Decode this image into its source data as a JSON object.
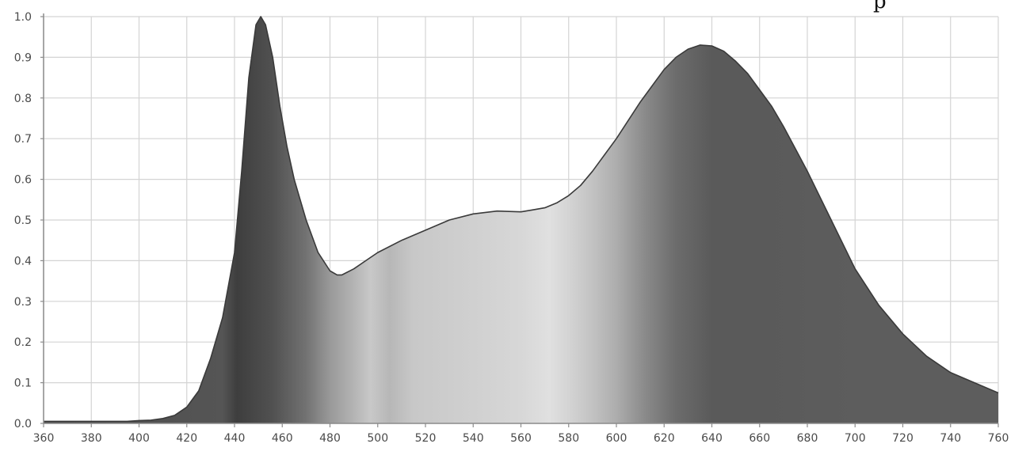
{
  "chart_data": {
    "type": "area",
    "title": "",
    "xlabel": "",
    "ylabel": "",
    "xlim": [
      360,
      760
    ],
    "ylim": [
      0.0,
      1.0
    ],
    "grid": true,
    "legend": "none",
    "x_ticks": [
      360,
      380,
      400,
      420,
      440,
      460,
      480,
      500,
      520,
      540,
      560,
      580,
      600,
      620,
      640,
      660,
      680,
      700,
      720,
      740,
      760
    ],
    "x_tick_labels": [
      "360",
      "380",
      "400",
      "420",
      "440",
      "460",
      "480",
      "500",
      "520",
      "540",
      "560",
      "580",
      "600",
      "620",
      "640",
      "660",
      "680",
      "700",
      "720",
      "740",
      "760"
    ],
    "y_ticks": [
      0.0,
      0.1,
      0.2,
      0.3,
      0.4,
      0.5,
      0.6,
      0.7,
      0.8,
      0.9,
      1.0
    ],
    "y_tick_labels": [
      "0.0",
      "0.1",
      "0.2",
      "0.3",
      "0.4",
      "0.5",
      "0.6",
      "0.7",
      "0.8",
      "0.9",
      "1.0"
    ],
    "series": [
      {
        "x": [
          360,
          380,
          395,
          400,
          405,
          410,
          415,
          420,
          425,
          430,
          435,
          440,
          443,
          446,
          449,
          451,
          453,
          456,
          459,
          462,
          465,
          470,
          475,
          480,
          483,
          485,
          490,
          495,
          500,
          510,
          520,
          530,
          540,
          550,
          560,
          565,
          570,
          575,
          580,
          585,
          590,
          595,
          600,
          605,
          610,
          615,
          620,
          625,
          630,
          635,
          640,
          645,
          650,
          655,
          660,
          665,
          670,
          675,
          680,
          690,
          700,
          710,
          720,
          730,
          740,
          750,
          760
        ],
        "values": [
          0.005,
          0.005,
          0.005,
          0.007,
          0.008,
          0.012,
          0.02,
          0.04,
          0.08,
          0.16,
          0.26,
          0.42,
          0.62,
          0.85,
          0.98,
          1.0,
          0.98,
          0.9,
          0.78,
          0.68,
          0.6,
          0.5,
          0.42,
          0.375,
          0.365,
          0.365,
          0.38,
          0.4,
          0.42,
          0.45,
          0.475,
          0.5,
          0.515,
          0.522,
          0.52,
          0.525,
          0.53,
          0.542,
          0.56,
          0.585,
          0.62,
          0.66,
          0.7,
          0.745,
          0.79,
          0.83,
          0.87,
          0.9,
          0.92,
          0.93,
          0.928,
          0.915,
          0.89,
          0.86,
          0.82,
          0.78,
          0.73,
          0.675,
          0.62,
          0.5,
          0.38,
          0.29,
          0.22,
          0.165,
          0.125,
          0.1,
          0.075
        ]
      }
    ],
    "fill_colors": {
      "spectrum_stops": [
        {
          "x": 360,
          "color": "#4c4c4c"
        },
        {
          "x": 435,
          "color": "#555555"
        },
        {
          "x": 441,
          "color": "#3e3e3e"
        },
        {
          "x": 456,
          "color": "#515151"
        },
        {
          "x": 470,
          "color": "#727272"
        },
        {
          "x": 480,
          "color": "#999999"
        },
        {
          "x": 490,
          "color": "#b4b4b4"
        },
        {
          "x": 497,
          "color": "#c8c8c8"
        },
        {
          "x": 505,
          "color": "#b7b7b7"
        },
        {
          "x": 515,
          "color": "#c8c8c8"
        },
        {
          "x": 540,
          "color": "#d0d0d0"
        },
        {
          "x": 560,
          "color": "#d7d7d7"
        },
        {
          "x": 572,
          "color": "#e0e0e0"
        },
        {
          "x": 580,
          "color": "#d4d4d4"
        },
        {
          "x": 590,
          "color": "#c2c2c2"
        },
        {
          "x": 600,
          "color": "#adadad"
        },
        {
          "x": 612,
          "color": "#8a8a8a"
        },
        {
          "x": 625,
          "color": "#6c6c6c"
        },
        {
          "x": 640,
          "color": "#5a5a5a"
        },
        {
          "x": 660,
          "color": "#5a5a5a"
        },
        {
          "x": 700,
          "color": "#5d5d5d"
        },
        {
          "x": 760,
          "color": "#5d5d5d"
        }
      ],
      "outline": "#3a3a3a",
      "grid": "#d4d4d4",
      "axis": "#8c8c8c"
    },
    "corner_mark": "p"
  }
}
